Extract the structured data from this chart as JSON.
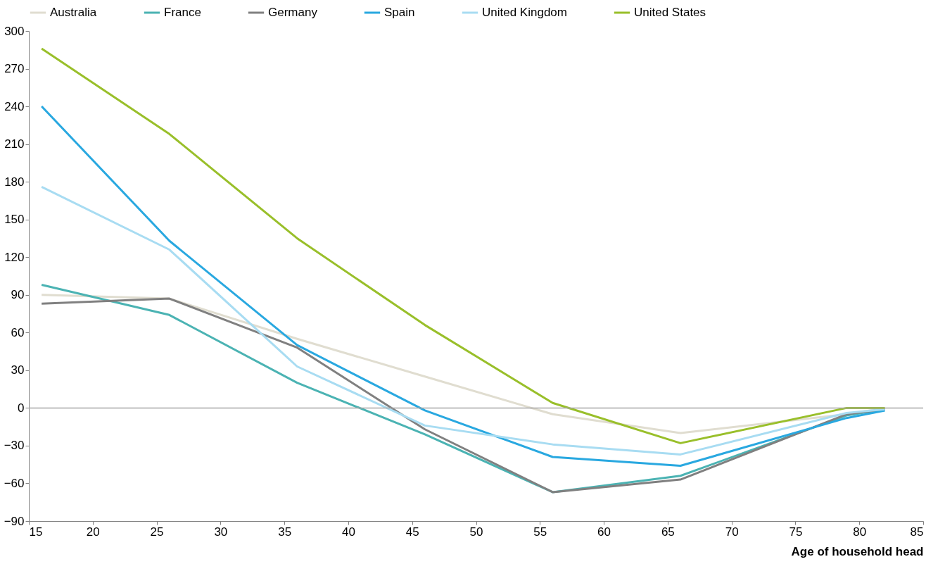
{
  "chart_data": {
    "type": "line",
    "xlabel": "Age of household head",
    "x": [
      16,
      26,
      36,
      46,
      56,
      66,
      79,
      82
    ],
    "series": [
      {
        "name": "Australia",
        "color": "#e0ddd0",
        "values": [
          90,
          87,
          55,
          25,
          -5,
          -20,
          -5,
          0
        ]
      },
      {
        "name": "France",
        "color": "#4bb3b3",
        "values": [
          98,
          74,
          20,
          -21,
          -67,
          -54,
          -6,
          -1
        ]
      },
      {
        "name": "Germany",
        "color": "#808080",
        "values": [
          83,
          87,
          48,
          -17,
          -67,
          -57,
          -5,
          -1
        ]
      },
      {
        "name": "Spain",
        "color": "#29a8e0",
        "values": [
          240,
          133,
          50,
          -2,
          -39,
          -46,
          -8,
          -2
        ]
      },
      {
        "name": "United Kingdom",
        "color": "#a8dcf2",
        "values": [
          176,
          126,
          33,
          -14,
          -29,
          -37,
          -4,
          -1
        ]
      },
      {
        "name": "United States",
        "color": "#99bf2a",
        "values": [
          286,
          218,
          135,
          66,
          4,
          -28,
          0,
          0
        ]
      }
    ],
    "xlim": [
      15,
      85
    ],
    "xticks": [
      15,
      20,
      25,
      30,
      35,
      40,
      45,
      50,
      55,
      60,
      65,
      70,
      75,
      80,
      85
    ],
    "ylim": [
      -90,
      300
    ],
    "yticks": [
      -90,
      -60,
      -30,
      0,
      30,
      60,
      90,
      120,
      150,
      180,
      210,
      240,
      270,
      300
    ],
    "ref_lines": [
      {
        "axis": "y",
        "value": 0,
        "color": "#a6a6a6"
      }
    ],
    "grid": false,
    "legend": "top",
    "marker": "none",
    "line_style": "solid"
  }
}
